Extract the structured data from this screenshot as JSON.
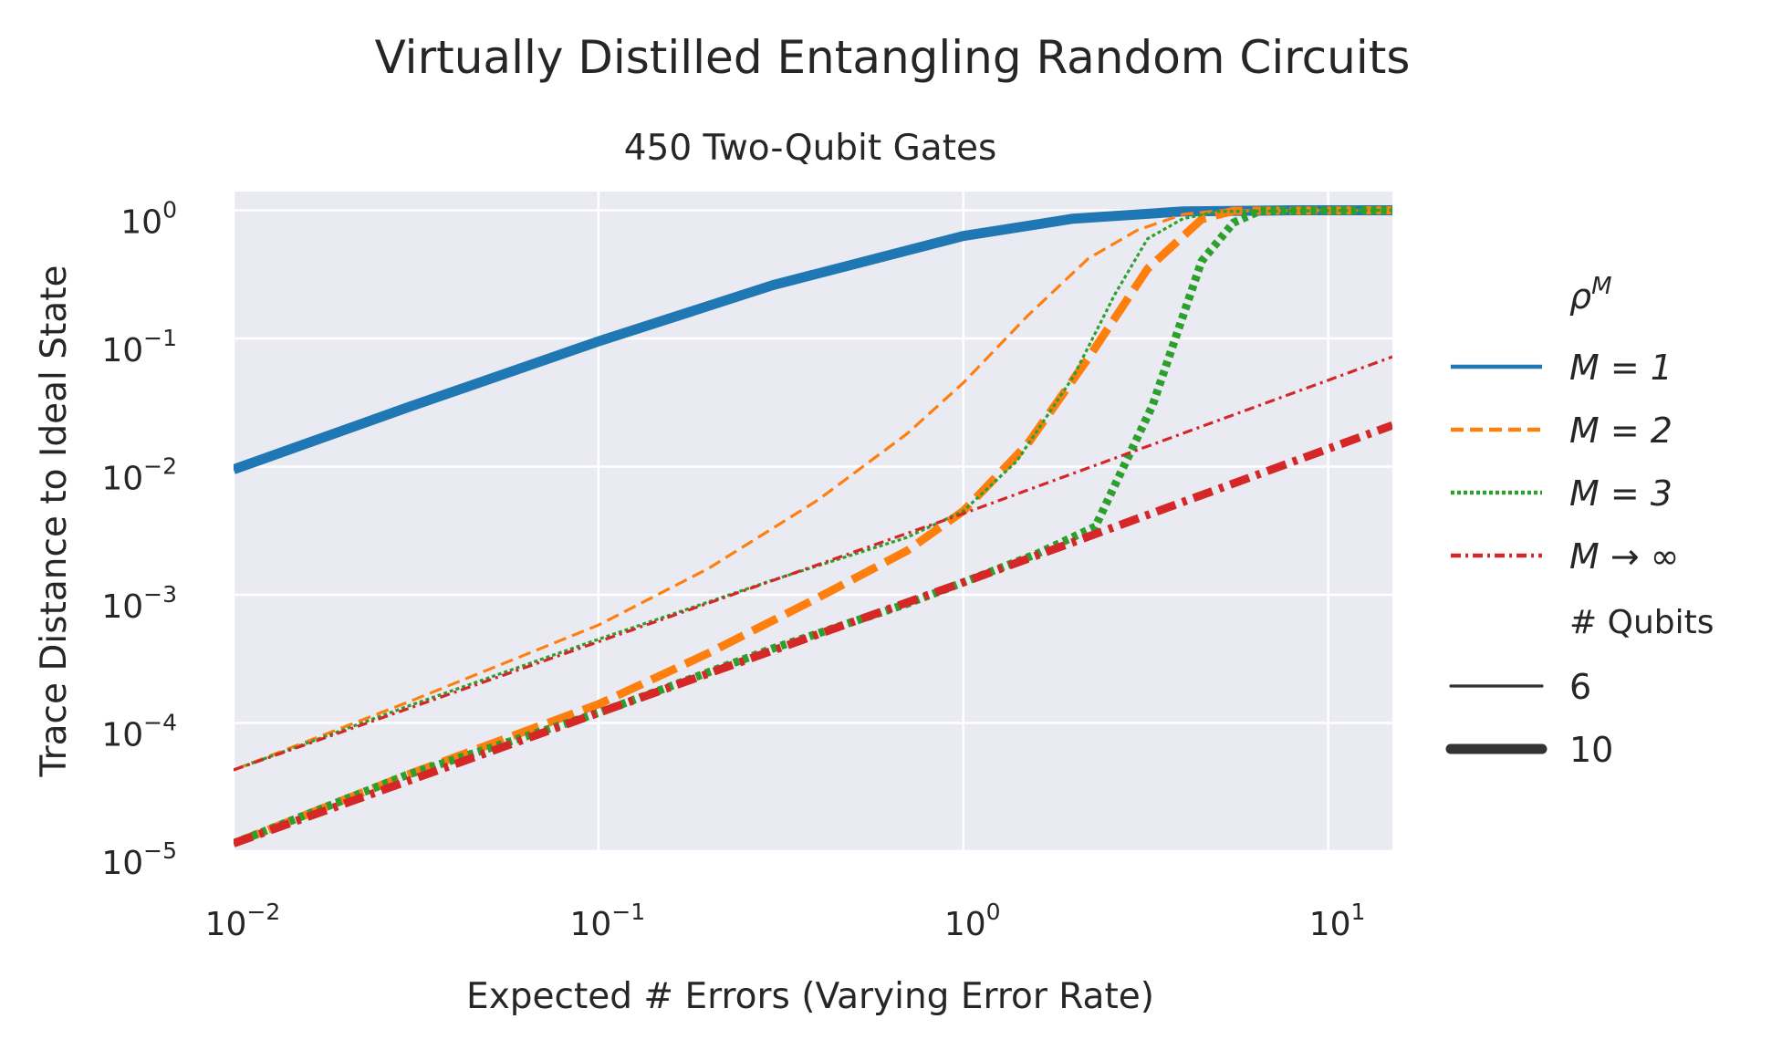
{
  "chart_data": {
    "type": "line",
    "title": "Virtually Distilled Entangling Random Circuits",
    "subtitle": "450 Two-Qubit Gates",
    "xlabel": "Expected # Errors (Varying Error Rate)",
    "ylabel": "Trace Distance to Ideal State",
    "xscale": "log",
    "yscale": "log",
    "xlim": [
      0.01,
      15
    ],
    "ylim": [
      1e-05,
      1.4
    ],
    "x_ticks": [
      {
        "value": 0.01,
        "base": "10",
        "exp": "−2"
      },
      {
        "value": 0.1,
        "base": "10",
        "exp": "−1"
      },
      {
        "value": 1,
        "base": "10",
        "exp": "0"
      },
      {
        "value": 10,
        "base": "10",
        "exp": "1"
      }
    ],
    "y_ticks": [
      {
        "value": 1,
        "base": "10",
        "exp": "0"
      },
      {
        "value": 0.1,
        "base": "10",
        "exp": "−1"
      },
      {
        "value": 0.01,
        "base": "10",
        "exp": "−2"
      },
      {
        "value": 0.001,
        "base": "10",
        "exp": "−3"
      },
      {
        "value": 0.0001,
        "base": "10",
        "exp": "−4"
      },
      {
        "value": 1e-05,
        "base": "10",
        "exp": "−5"
      }
    ],
    "grid": true,
    "legend": {
      "placement": "right",
      "hue_title": {
        "base": "ρ",
        "sup": "M"
      },
      "hue_entries": [
        {
          "label": "M = 1",
          "style": "solid",
          "color": "#1f77b4"
        },
        {
          "label": "M = 2",
          "style": "dashed",
          "color": "#ff7f0e"
        },
        {
          "label": "M = 3",
          "style": "dotted",
          "color": "#2ca02c"
        },
        {
          "label": "M → ∞",
          "style": "dashdot",
          "color": "#d62728"
        }
      ],
      "size_title": "# Qubits",
      "size_entries": [
        {
          "label": "6",
          "weight": "thin"
        },
        {
          "label": "10",
          "weight": "thick"
        }
      ]
    },
    "series": [
      {
        "name": "M = 1",
        "qubits": "6",
        "style": "solid",
        "color": "#1f77b4",
        "x": [
          0.01,
          0.03,
          0.1,
          0.3,
          1,
          2,
          4,
          8,
          15
        ],
        "y": [
          0.0095,
          0.029,
          0.095,
          0.26,
          0.63,
          0.86,
          0.98,
          1.0,
          1.0
        ]
      },
      {
        "name": "M = 1",
        "qubits": "10",
        "style": "solid",
        "color": "#1f77b4",
        "x": [
          0.01,
          0.03,
          0.1,
          0.3,
          1,
          2,
          4,
          8,
          15
        ],
        "y": [
          0.0095,
          0.029,
          0.095,
          0.26,
          0.63,
          0.86,
          0.98,
          1.0,
          1.0
        ]
      },
      {
        "name": "M = 2",
        "qubits": "6",
        "style": "dashed",
        "color": "#ff7f0e",
        "x": [
          0.01,
          0.03,
          0.1,
          0.2,
          0.4,
          0.7,
          1,
          1.5,
          2.2,
          3,
          4,
          5,
          15
        ],
        "y": [
          4.3e-05,
          0.000145,
          0.00058,
          0.0016,
          0.0055,
          0.018,
          0.045,
          0.15,
          0.42,
          0.7,
          0.93,
          0.99,
          1.0
        ]
      },
      {
        "name": "M = 2",
        "qubits": "10",
        "style": "dashed",
        "color": "#ff7f0e",
        "x": [
          0.01,
          0.03,
          0.1,
          0.2,
          0.4,
          0.7,
          1,
          1.5,
          2.2,
          3.2,
          4.5,
          5.5,
          15
        ],
        "y": [
          1.15e-05,
          3.95e-05,
          0.00014,
          0.00035,
          0.00095,
          0.0022,
          0.0045,
          0.015,
          0.07,
          0.35,
          0.85,
          0.99,
          1.0
        ]
      },
      {
        "name": "M = 3",
        "qubits": "6",
        "style": "dotted",
        "color": "#2ca02c",
        "x": [
          0.01,
          0.03,
          0.1,
          0.3,
          0.7,
          1,
          1.4,
          2,
          2.6,
          3.2,
          4,
          5,
          15
        ],
        "y": [
          4.3e-05,
          0.000135,
          0.00045,
          0.0013,
          0.0028,
          0.0045,
          0.011,
          0.05,
          0.22,
          0.6,
          0.86,
          0.98,
          1.0
        ]
      },
      {
        "name": "M = 3",
        "qubits": "10",
        "style": "dotted",
        "color": "#2ca02c",
        "x": [
          0.01,
          0.03,
          0.1,
          0.3,
          0.7,
          1,
          1.6,
          2.3,
          3.3,
          4.5,
          5.5,
          6.5,
          15
        ],
        "y": [
          1.15e-05,
          3.95e-05,
          0.00012,
          0.00038,
          0.00085,
          0.00125,
          0.0021,
          0.0034,
          0.03,
          0.4,
          0.8,
          0.99,
          1.0
        ]
      },
      {
        "name": "M → ∞",
        "qubits": "6",
        "style": "dashdot",
        "color": "#d62728",
        "x": [
          0.01,
          0.1,
          1,
          15
        ],
        "y": [
          4.3e-05,
          0.00043,
          0.0043,
          0.072
        ]
      },
      {
        "name": "M → ∞",
        "qubits": "10",
        "style": "dashdot",
        "color": "#d62728",
        "x": [
          0.01,
          0.1,
          1,
          15
        ],
        "y": [
          1.15e-05,
          0.00012,
          0.00125,
          0.021
        ]
      }
    ]
  }
}
